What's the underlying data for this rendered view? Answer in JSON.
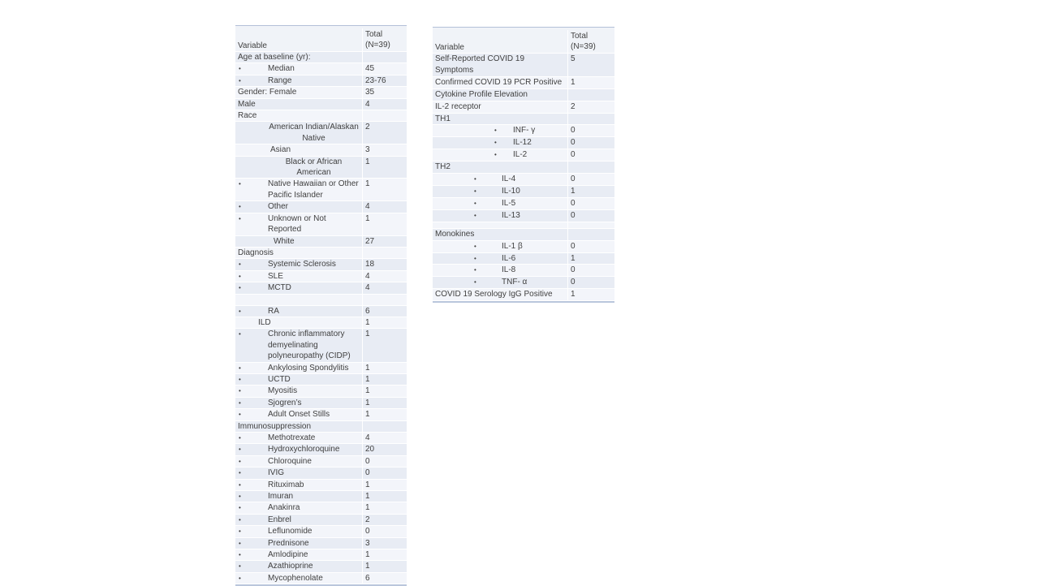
{
  "colors": {
    "background": "#ffffff",
    "band_dark": "#e8ecf4",
    "band_light": "#f3f5fa",
    "header_bg": "#f0f3f8",
    "table_border": "#b3c0d8",
    "text": "#404040"
  },
  "tables": [
    {
      "id": "demographics-table",
      "header": {
        "variable": "Variable",
        "total": "Total\n(N=39)"
      },
      "rows": [
        {
          "label": "Age at baseline (yr):",
          "value": "",
          "indent": 0
        },
        {
          "label": "Median",
          "value": "45",
          "indent": 2,
          "bullet": true
        },
        {
          "label": "Range",
          "value": "23-76",
          "indent": 2,
          "bullet": true
        },
        {
          "label": "Gender: Female",
          "value": "35",
          "indent": 0
        },
        {
          "label": "Male",
          "value": "4",
          "indent": 0
        },
        {
          "label": "Race",
          "value": "",
          "indent": 0
        },
        {
          "label": "American Indian/Alaskan\nNative",
          "value": "2",
          "indent": 2,
          "center": true
        },
        {
          "label": "Asian",
          "value": "3",
          "indent": 3
        },
        {
          "label": "Black or African\nAmerican",
          "value": "1",
          "indent": 2,
          "center": true
        },
        {
          "label": "Native Hawaiian or Other\nPacific Islander",
          "value": "1",
          "indent": 2,
          "bullet": true
        },
        {
          "label": "Other",
          "value": "4",
          "indent": 2,
          "bullet": true
        },
        {
          "label": "Unknown or Not Reported",
          "value": "1",
          "indent": 2,
          "bullet": true
        },
        {
          "label": "White",
          "value": "27",
          "indent": 4
        },
        {
          "label": "Diagnosis",
          "value": "",
          "indent": 0
        },
        {
          "label": "Systemic Sclerosis",
          "value": "18",
          "indent": 2,
          "bullet": true
        },
        {
          "label": "SLE",
          "value": "4",
          "indent": 2,
          "bullet": true
        },
        {
          "label": "MCTD",
          "value": "4",
          "indent": 2,
          "bullet": true
        },
        {
          "label": "",
          "value": ""
        },
        {
          "label": "RA",
          "value": "6",
          "indent": 2,
          "bullet": true
        },
        {
          "label": "ILD",
          "value": "1",
          "indent": 1
        },
        {
          "label": "Chronic inflammatory\ndemyelinating\npolyneuropathy (CIDP)",
          "value": "1",
          "indent": 2,
          "bullet": true
        },
        {
          "label": "Ankylosing Spondylitis",
          "value": "1",
          "indent": 2,
          "bullet": true
        },
        {
          "label": "UCTD",
          "value": "1",
          "indent": 2,
          "bullet": true
        },
        {
          "label": "Myositis",
          "value": "1",
          "indent": 2,
          "bullet": true
        },
        {
          "label": "Sjogren’s",
          "value": "1",
          "indent": 2,
          "bullet": true
        },
        {
          "label": "Adult Onset Stills",
          "value": "1",
          "indent": 2,
          "bullet": true
        },
        {
          "label": "Immunosuppression",
          "value": "",
          "indent": 0
        },
        {
          "label": "Methotrexate",
          "value": "4",
          "indent": 2,
          "bullet": true
        },
        {
          "label": "Hydroxychloroquine",
          "value": "20",
          "indent": 2,
          "bullet": true
        },
        {
          "label": "Chloroquine",
          "value": "0",
          "indent": 2,
          "bullet": true
        },
        {
          "label": "IVIG",
          "value": "0",
          "indent": 2,
          "bullet": true
        },
        {
          "label": "Rituximab",
          "value": "1",
          "indent": 2,
          "bullet": true
        },
        {
          "label": "Imuran",
          "value": "1",
          "indent": 2,
          "bullet": true
        },
        {
          "label": "Anakinra",
          "value": "1",
          "indent": 2,
          "bullet": true
        },
        {
          "label": "Enbrel",
          "value": "2",
          "indent": 2,
          "bullet": true
        },
        {
          "label": "Leflunomide",
          "value": "0",
          "indent": 2,
          "bullet": true
        },
        {
          "label": "Prednisone",
          "value": "3",
          "indent": 2,
          "bullet": true
        },
        {
          "label": "Amlodipine",
          "value": "1",
          "indent": 2,
          "bullet": true
        },
        {
          "label": "Azathioprine",
          "value": "1",
          "indent": 2,
          "bullet": true
        },
        {
          "label": "Mycophenolate",
          "value": "6",
          "indent": 2,
          "bullet": true
        }
      ]
    },
    {
      "id": "covid-cytokine-table",
      "header": {
        "variable": "Variable",
        "total": "Total\n(N=39)"
      },
      "rows": [
        {
          "label": "Self-Reported COVID 19 Symptoms",
          "value": "5",
          "indent": 0
        },
        {
          "label": "Confirmed COVID 19 PCR Positive",
          "value": "1",
          "indent": 0
        },
        {
          "label": "Cytokine Profile Elevation",
          "value": "",
          "indent": 0
        },
        {
          "label": "IL-2 receptor",
          "value": "2",
          "indent": 0
        },
        {
          "label": "TH1",
          "value": "",
          "indent": 0
        },
        {
          "label": "INF- γ",
          "value": "0",
          "indent": 2,
          "bullet": true
        },
        {
          "label": "IL-12",
          "value": "0",
          "indent": 2,
          "bullet": true
        },
        {
          "label": "IL-2",
          "value": "0",
          "indent": 2,
          "bullet": true
        },
        {
          "label": "TH2",
          "value": "",
          "indent": 0
        },
        {
          "label": "IL-4",
          "value": "0",
          "indent": 1,
          "bullet": true
        },
        {
          "label": "IL-10",
          "value": "1",
          "indent": 1,
          "bullet": true
        },
        {
          "label": "IL-5",
          "value": "0",
          "indent": 1,
          "bullet": true
        },
        {
          "label": "IL-13",
          "value": "0",
          "indent": 1,
          "bullet": true
        },
        {
          "label": "",
          "value": ""
        },
        {
          "label": "Monokines",
          "value": "",
          "indent": 0
        },
        {
          "label": "IL-1 β",
          "value": "0",
          "indent": 1,
          "bullet": true
        },
        {
          "label": "IL-6",
          "value": "1",
          "indent": 1,
          "bullet": true
        },
        {
          "label": "IL-8",
          "value": "0",
          "indent": 1,
          "bullet": true
        },
        {
          "label": "TNF- α",
          "value": "0",
          "indent": 1,
          "bullet": true
        },
        {
          "label": "COVID 19 Serology IgG Positive",
          "value": "1",
          "indent": 0
        }
      ]
    }
  ]
}
